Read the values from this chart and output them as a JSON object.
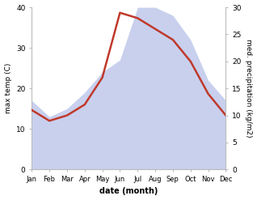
{
  "months": [
    "Jan",
    "Feb",
    "Mar",
    "Apr",
    "May",
    "Jun",
    "Jul",
    "Aug",
    "Sep",
    "Oct",
    "Nov",
    "Dec"
  ],
  "temp": [
    17,
    13,
    15,
    19,
    24,
    27,
    40,
    40,
    38,
    32,
    22,
    17
  ],
  "precip": [
    11,
    9,
    10,
    12,
    17,
    29,
    28,
    26,
    24,
    20,
    14,
    10
  ],
  "temp_fill_color": "#c8d0ee",
  "precip_color": "#c0392b",
  "left_label": "max temp (C)",
  "right_label": "med. precipitation (kg/m2)",
  "xlabel": "date (month)",
  "ylim_left": [
    0,
    40
  ],
  "ylim_right": [
    0,
    30
  ],
  "temp_yticks": [
    0,
    10,
    20,
    30,
    40
  ],
  "precip_yticks": [
    0,
    5,
    10,
    15,
    20,
    25,
    30
  ],
  "background_color": "#ffffff",
  "fig_width": 3.18,
  "fig_height": 2.47,
  "dpi": 100
}
